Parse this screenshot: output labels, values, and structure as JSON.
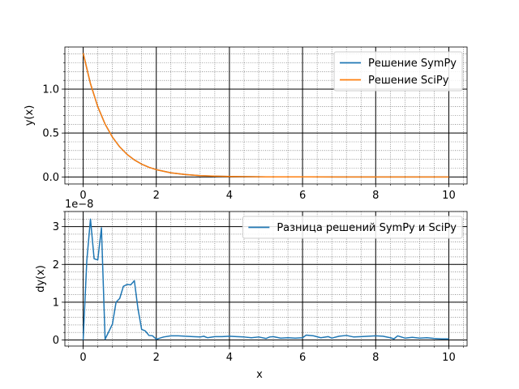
{
  "chart_data": [
    {
      "type": "line",
      "title": "",
      "xlabel": "",
      "ylabel": "y(x)",
      "xlim": [
        -0.5,
        10.5
      ],
      "ylim": [
        -0.08,
        1.48
      ],
      "xticks": [
        0,
        2,
        4,
        6,
        8,
        10
      ],
      "xtick_labels": [
        "0",
        "2",
        "4",
        "6",
        "8",
        "10"
      ],
      "yticks": [
        0.0,
        0.5,
        1.0
      ],
      "ytick_labels": [
        "0.0",
        "0.5",
        "1.0"
      ],
      "grid": {
        "major": true,
        "minor": true
      },
      "legend": "top-right",
      "series": [
        {
          "name": "Решение SymPy",
          "color": "#1f77b4",
          "x": [
            0,
            0.2,
            0.4,
            0.6,
            0.8,
            1.0,
            1.2,
            1.4,
            1.6,
            1.8,
            2.0,
            2.4,
            2.8,
            3.2,
            3.6,
            4,
            5,
            6,
            7,
            8,
            9,
            10
          ],
          "y": [
            1.41,
            1.062,
            0.8,
            0.602,
            0.454,
            0.342,
            0.257,
            0.194,
            0.146,
            0.11,
            0.083,
            0.047,
            0.027,
            0.015,
            0.0087,
            0.0049,
            0.0012,
            0.0003,
            0.0001,
            0.0,
            0.0,
            0.0
          ]
        },
        {
          "name": "Решение SciPy",
          "color": "#ff7f0e",
          "x": [
            0,
            0.2,
            0.4,
            0.6,
            0.8,
            1.0,
            1.2,
            1.4,
            1.6,
            1.8,
            2.0,
            2.4,
            2.8,
            3.2,
            3.6,
            4,
            5,
            6,
            7,
            8,
            9,
            10
          ],
          "y": [
            1.41,
            1.062,
            0.8,
            0.602,
            0.454,
            0.342,
            0.257,
            0.194,
            0.146,
            0.11,
            0.083,
            0.047,
            0.027,
            0.015,
            0.0087,
            0.0049,
            0.0012,
            0.0003,
            0.0001,
            0.0,
            0.0,
            0.0
          ]
        }
      ]
    },
    {
      "type": "line",
      "title": "",
      "xlabel": "x",
      "ylabel": "dy(x)",
      "y_offset_text": "1e−8",
      "y_scale_factor": 1e-08,
      "xlim": [
        -0.5,
        10.5
      ],
      "ylim": [
        -0.16,
        3.4
      ],
      "xticks": [
        0,
        2,
        4,
        6,
        8,
        10
      ],
      "xtick_labels": [
        "0",
        "2",
        "4",
        "6",
        "8",
        "10"
      ],
      "yticks": [
        0,
        1,
        2,
        3
      ],
      "ytick_labels": [
        "0",
        "1",
        "2",
        "3"
      ],
      "grid": {
        "major": true,
        "minor": true
      },
      "legend": "top-right",
      "series": [
        {
          "name": "Разница решений SymPy и SciPy",
          "color": "#1f77b4",
          "x": [
            0,
            0.1,
            0.2,
            0.3,
            0.4,
            0.5,
            0.6,
            0.7,
            0.8,
            0.9,
            1.0,
            1.1,
            1.2,
            1.3,
            1.4,
            1.5,
            1.6,
            1.7,
            1.8,
            1.9,
            2.0,
            2.1,
            2.2,
            2.4,
            2.6,
            2.8,
            3.0,
            3.2,
            3.3,
            3.4,
            3.6,
            3.8,
            4.0,
            4.2,
            4.4,
            4.6,
            4.8,
            5.0,
            5.1,
            5.2,
            5.4,
            5.6,
            5.8,
            6.0,
            6.1,
            6.3,
            6.5,
            6.7,
            6.8,
            7.0,
            7.2,
            7.4,
            7.6,
            7.8,
            8.0,
            8.2,
            8.4,
            8.5,
            8.6,
            8.8,
            9.0,
            9.2,
            9.4,
            9.6,
            9.8,
            10.0
          ],
          "y": [
            0.0,
            2.1,
            3.2,
            2.15,
            2.12,
            2.97,
            0.02,
            0.22,
            0.42,
            1.0,
            1.1,
            1.42,
            1.47,
            1.46,
            1.57,
            0.82,
            0.28,
            0.24,
            0.12,
            0.11,
            0.02,
            0.05,
            0.08,
            0.11,
            0.11,
            0.1,
            0.09,
            0.08,
            0.1,
            0.06,
            0.09,
            0.09,
            0.1,
            0.09,
            0.08,
            0.06,
            0.08,
            0.04,
            0.08,
            0.09,
            0.05,
            0.06,
            0.05,
            0.06,
            0.13,
            0.11,
            0.06,
            0.09,
            0.05,
            0.1,
            0.12,
            0.08,
            0.09,
            0.1,
            0.11,
            0.1,
            0.06,
            0.03,
            0.11,
            0.05,
            0.07,
            0.05,
            0.06,
            0.04,
            0.03,
            0.03
          ]
        }
      ]
    }
  ]
}
